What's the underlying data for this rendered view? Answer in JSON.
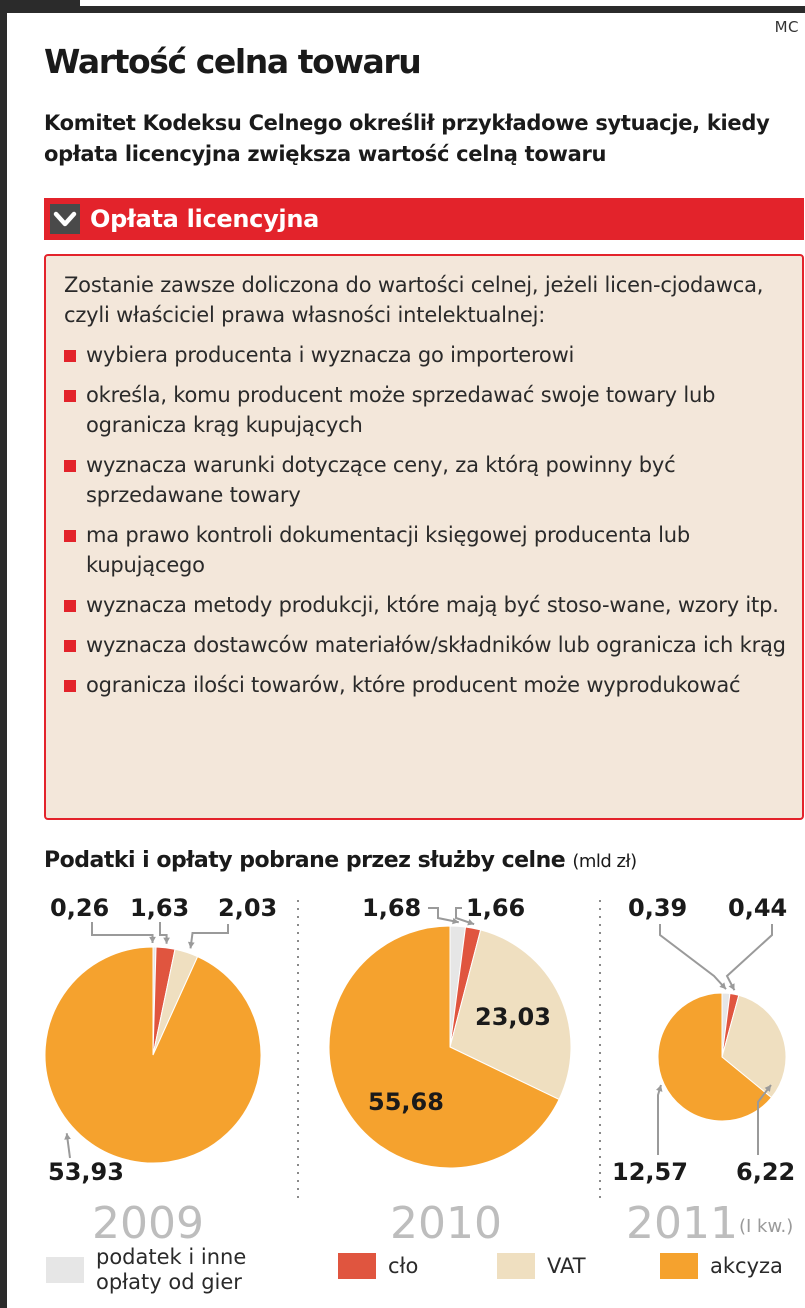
{
  "header": {
    "credit": "MC",
    "title": "Wartość celna towaru",
    "subtitle": "Komitet Kodeksu Celnego określił przykładowe sytuacje, kiedy opłata licencyjna zwiększa wartość celną towaru"
  },
  "box": {
    "heading": "Opłata licencyjna",
    "intro": "Zostanie zawsze doliczona do wartości celnej, jeżeli licen-cjodawca, czyli właściciel prawa własności intelektualnej:",
    "items": [
      "wybiera producenta i wyznacza go importerowi",
      "określa, komu producent może sprzedawać swoje towary lub ogranicza krąg kupujących",
      "wyznacza warunki dotyczące ceny, za którą powinny być sprzedawane towary",
      "ma prawo kontroli dokumentacji księgowej producenta lub kupującego",
      "wyznacza metody produkcji, które mają być stoso-wane, wzory itp.",
      "wyznacza dostawców materiałów/składników lub ogranicza ich krąg",
      "ogranicza ilości towarów, które producent może wyprodukować"
    ]
  },
  "colors": {
    "red": "#e3232b",
    "gry": "#e6e6e6",
    "clo": "#e0553f",
    "vat": "#efdfc0",
    "akcyza": "#f5a22e",
    "year": "#bdbdbd"
  },
  "chart_data": {
    "type": "pie",
    "title": "Podatki i opłaty pobrane przez służby celne",
    "unit": "(mld zł)",
    "categories": [
      "podatek i inne opłaty od gier",
      "cło",
      "VAT",
      "akcyza"
    ],
    "pies": [
      {
        "year": "2009",
        "note": "",
        "values": [
          0.26,
          1.63,
          2.03,
          53.93
        ],
        "labels": [
          "0,26",
          "1,63",
          "2,03",
          "53,93"
        ]
      },
      {
        "year": "2010",
        "note": "",
        "values": [
          1.68,
          1.66,
          23.03,
          55.68
        ],
        "labels": [
          "1,68",
          "1,66",
          "23,03",
          "55,68"
        ]
      },
      {
        "year": "2011",
        "note": "(I kw.)",
        "values": [
          0.39,
          0.44,
          6.22,
          12.57
        ],
        "labels": [
          "0,39",
          "0,44",
          "6,22",
          "12,57"
        ]
      }
    ]
  }
}
